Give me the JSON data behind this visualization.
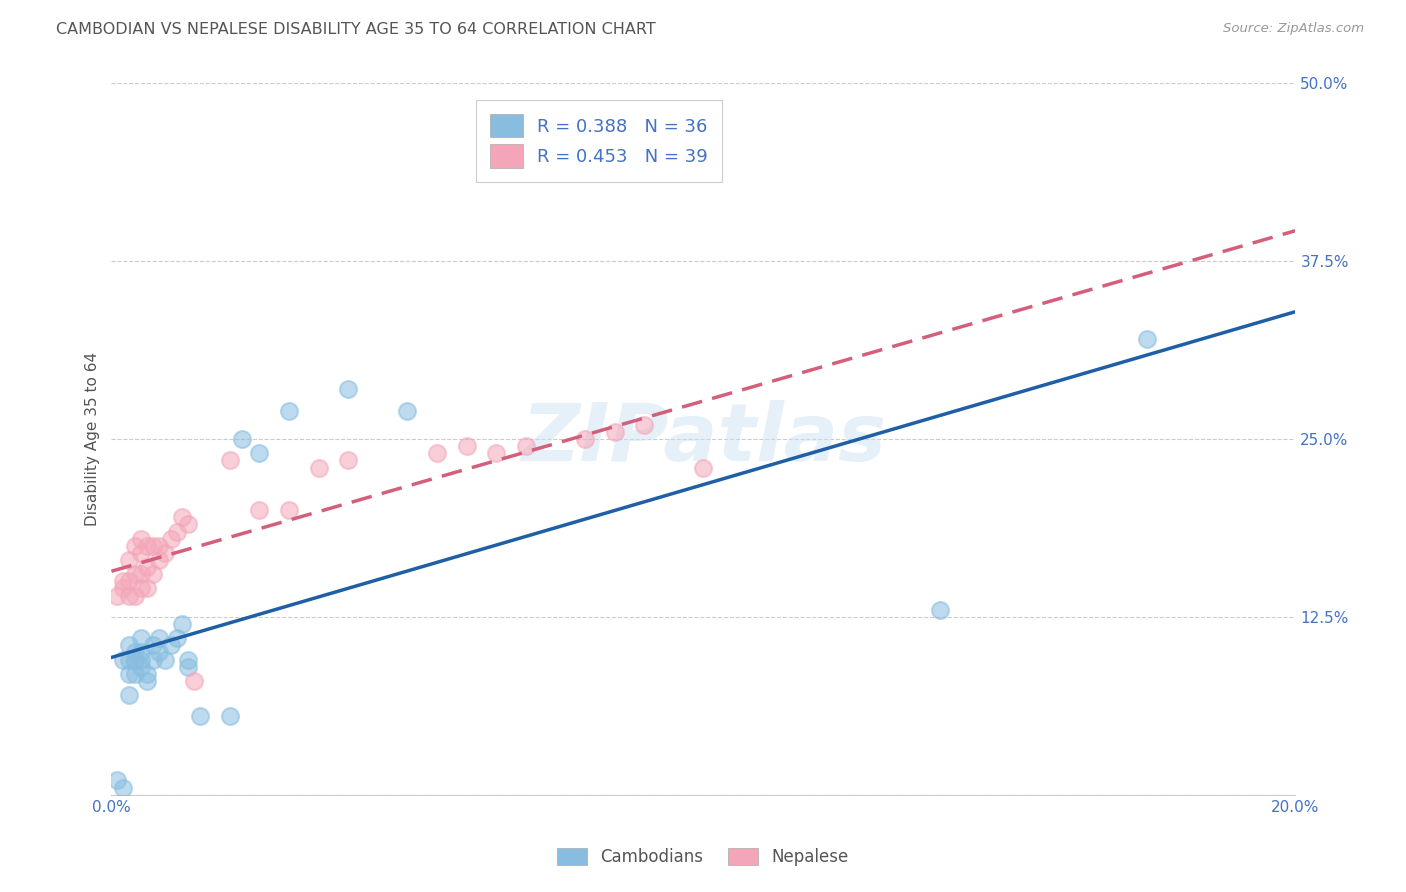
{
  "title": "CAMBODIAN VS NEPALESE DISABILITY AGE 35 TO 64 CORRELATION CHART",
  "source": "Source: ZipAtlas.com",
  "ylabel": "Disability Age 35 to 64",
  "watermark": "ZIPatlas",
  "R_cambodian": 0.388,
  "N_cambodian": 36,
  "R_nepalese": 0.453,
  "N_nepalese": 39,
  "xlim": [
    0.0,
    0.2
  ],
  "ylim": [
    0.0,
    0.5
  ],
  "xticks": [
    0.0,
    0.04,
    0.08,
    0.12,
    0.16,
    0.2
  ],
  "yticks": [
    0.0,
    0.125,
    0.25,
    0.375,
    0.5
  ],
  "color_cambodian": "#88bde0",
  "color_nepalese": "#f4a6b8",
  "line_color_cambodian": "#1f5fa6",
  "line_color_nepalese": "#d45f7a",
  "background_color": "#ffffff",
  "title_fontsize": 11.5,
  "axis_label_fontsize": 11,
  "tick_fontsize": 11,
  "cambodian_x": [
    0.001,
    0.002,
    0.002,
    0.003,
    0.003,
    0.003,
    0.003,
    0.004,
    0.004,
    0.004,
    0.004,
    0.005,
    0.005,
    0.005,
    0.005,
    0.006,
    0.006,
    0.007,
    0.007,
    0.008,
    0.008,
    0.009,
    0.01,
    0.011,
    0.012,
    0.013,
    0.013,
    0.015,
    0.02,
    0.022,
    0.025,
    0.03,
    0.04,
    0.05,
    0.14,
    0.175
  ],
  "cambodian_y": [
    0.01,
    0.005,
    0.095,
    0.07,
    0.085,
    0.095,
    0.105,
    0.085,
    0.095,
    0.095,
    0.1,
    0.09,
    0.095,
    0.1,
    0.11,
    0.08,
    0.085,
    0.095,
    0.105,
    0.1,
    0.11,
    0.095,
    0.105,
    0.11,
    0.12,
    0.09,
    0.095,
    0.055,
    0.055,
    0.25,
    0.24,
    0.27,
    0.285,
    0.27,
    0.13,
    0.32
  ],
  "nepalese_x": [
    0.001,
    0.002,
    0.002,
    0.003,
    0.003,
    0.003,
    0.004,
    0.004,
    0.004,
    0.005,
    0.005,
    0.005,
    0.005,
    0.006,
    0.006,
    0.006,
    0.007,
    0.007,
    0.008,
    0.008,
    0.009,
    0.01,
    0.011,
    0.012,
    0.013,
    0.014,
    0.02,
    0.025,
    0.03,
    0.035,
    0.04,
    0.055,
    0.06,
    0.065,
    0.07,
    0.08,
    0.085,
    0.09,
    0.1
  ],
  "nepalese_y": [
    0.14,
    0.145,
    0.15,
    0.14,
    0.15,
    0.165,
    0.14,
    0.155,
    0.175,
    0.145,
    0.155,
    0.17,
    0.18,
    0.145,
    0.16,
    0.175,
    0.155,
    0.175,
    0.165,
    0.175,
    0.17,
    0.18,
    0.185,
    0.195,
    0.19,
    0.08,
    0.235,
    0.2,
    0.2,
    0.23,
    0.235,
    0.24,
    0.245,
    0.24,
    0.245,
    0.25,
    0.255,
    0.26,
    0.23
  ]
}
